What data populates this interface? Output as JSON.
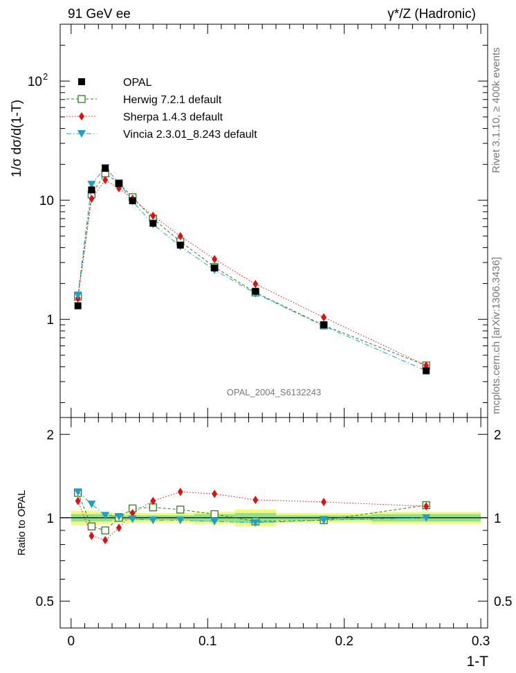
{
  "header": {
    "left": "91 GeV ee",
    "right": "γ*/Z (Hadronic)"
  },
  "side": {
    "rivet": "Rivet 3.1.10, ≥ 400k events",
    "mcplots": "mcplots.cern.ch [arXiv:1306.3436]"
  },
  "analysis_id": "OPAL_2004_S6132243",
  "chart_data": [
    {
      "type": "scatter",
      "panel": "main",
      "ylabel": "1/σ dσ/d(1-T)",
      "yscale": "log",
      "ylim": [
        0.15,
        300
      ],
      "xlim": [
        -0.008,
        0.305
      ],
      "ytick_labels": [
        "1",
        "10",
        "10^2"
      ],
      "ytick_values": [
        1,
        10,
        100
      ],
      "legend_position": "top-left",
      "x": [
        0.005,
        0.015,
        0.025,
        0.035,
        0.045,
        0.06,
        0.08,
        0.105,
        0.135,
        0.185,
        0.26
      ],
      "series": [
        {
          "name": "OPAL",
          "color": "#000000",
          "marker": "square-filled",
          "line": "none",
          "values": [
            1.3,
            12.2,
            18.5,
            13.8,
            9.9,
            6.4,
            4.2,
            2.7,
            1.72,
            0.9,
            0.37
          ],
          "yerr": [
            0.05,
            0.4,
            0.5,
            0.4,
            0.3,
            0.2,
            0.15,
            0.1,
            0.08,
            0.04,
            0.02
          ]
        },
        {
          "name": "Herwig 7.2.1 default",
          "color": "#2e7d1e",
          "marker": "square-open",
          "line": "dashed",
          "values": [
            1.55,
            11.2,
            16.8,
            13.9,
            10.6,
            7.0,
            4.5,
            2.75,
            1.68,
            0.89,
            0.41
          ]
        },
        {
          "name": "Sherpa 1.4.3 default",
          "color": "#e01010",
          "marker": "diamond",
          "line": "dotted",
          "values": [
            1.5,
            10.3,
            14.8,
            12.6,
            10.3,
            7.4,
            5.0,
            3.2,
            1.98,
            1.04,
            0.41
          ]
        },
        {
          "name": "Vincia 2.3.01_8.243 default",
          "color": "#1aa3c8",
          "marker": "triangle-down",
          "line": "dashdot",
          "values": [
            1.6,
            13.6,
            18.8,
            14.0,
            9.8,
            6.3,
            4.1,
            2.6,
            1.65,
            0.88,
            0.37
          ]
        }
      ]
    },
    {
      "type": "scatter",
      "panel": "ratio",
      "xlabel": "1-T",
      "ylabel": "Ratio to OPAL",
      "ylim": [
        0.4,
        2.3
      ],
      "xlim": [
        -0.008,
        0.305
      ],
      "ytick_labels": [
        "0.5",
        "1",
        "2"
      ],
      "ytick_values": [
        0.5,
        1,
        2
      ],
      "xtick_labels": [
        "0",
        "0.1",
        "0.2",
        "0.3"
      ],
      "xtick_values": [
        0,
        0.1,
        0.2,
        0.3
      ],
      "x": [
        0.005,
        0.015,
        0.025,
        0.035,
        0.045,
        0.06,
        0.08,
        0.105,
        0.135,
        0.185,
        0.26
      ],
      "band_edges": [
        0.0,
        0.01,
        0.02,
        0.03,
        0.04,
        0.05,
        0.07,
        0.09,
        0.12,
        0.15,
        0.22,
        0.3
      ],
      "band_outer": [
        0.06,
        0.06,
        0.05,
        0.04,
        0.04,
        0.04,
        0.04,
        0.05,
        0.07,
        0.04,
        0.05
      ],
      "band_inner": [
        0.03,
        0.03,
        0.03,
        0.02,
        0.02,
        0.02,
        0.02,
        0.03,
        0.04,
        0.02,
        0.03
      ],
      "series": [
        {
          "name": "Herwig 7.2.1 default",
          "color": "#2e7d1e",
          "marker": "square-open",
          "line": "dashed",
          "values": [
            1.23,
            0.93,
            0.9,
            1.0,
            1.08,
            1.09,
            1.07,
            1.03,
            0.97,
            0.98,
            1.11
          ]
        },
        {
          "name": "Sherpa 1.4.3 default",
          "color": "#e01010",
          "marker": "diamond",
          "line": "dotted",
          "values": [
            1.15,
            0.86,
            0.83,
            0.92,
            1.04,
            1.15,
            1.24,
            1.22,
            1.16,
            1.14,
            1.1
          ]
        },
        {
          "name": "Vincia 2.3.01_8.243 default",
          "color": "#1aa3c8",
          "marker": "triangle-down",
          "line": "dashdot",
          "values": [
            1.24,
            1.12,
            1.02,
            1.01,
            0.99,
            0.98,
            0.98,
            0.97,
            0.96,
            0.98,
            1.0
          ]
        }
      ]
    }
  ]
}
